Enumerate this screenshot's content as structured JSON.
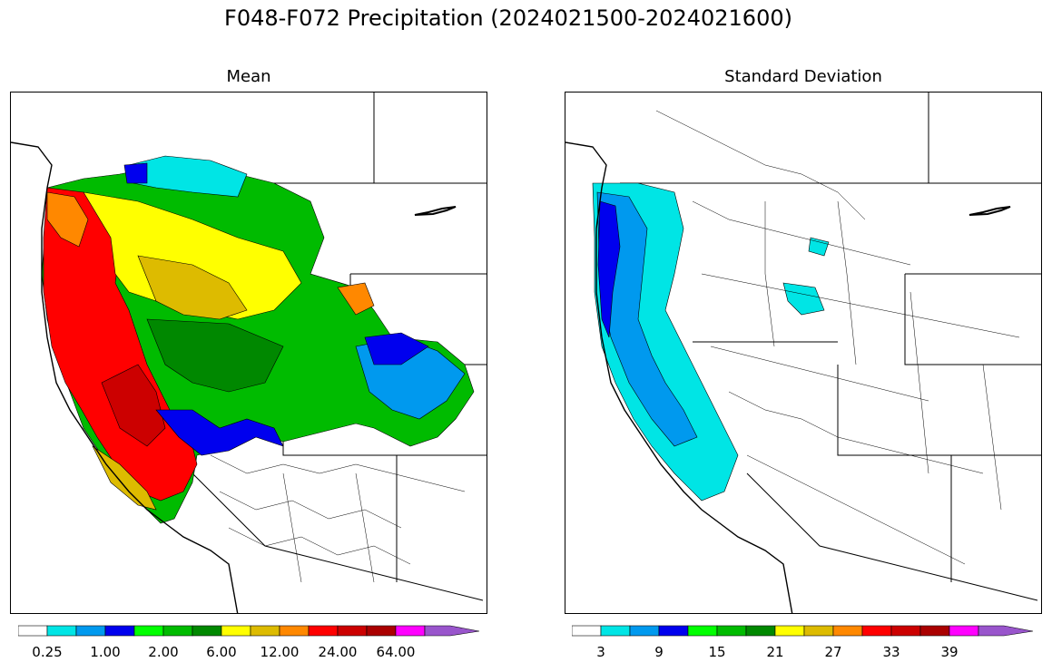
{
  "figure": {
    "title": "F048-F072 Precipitation (2024021500-2024021600)"
  },
  "panels": [
    {
      "title": "Mean",
      "colorbar": {
        "colors": [
          "#ffffff",
          "#00e5e5",
          "#0099ee",
          "#0000ee",
          "#00ff00",
          "#00bb00",
          "#008800",
          "#ffff00",
          "#ddbb00",
          "#ff8800",
          "#ff0000",
          "#cc0000",
          "#aa0000",
          "#ff00ff",
          "#9955cc"
        ],
        "tick_labels": [
          "0.25",
          "1.00",
          "2.00",
          "6.00",
          "12.00",
          "24.00",
          "64.00"
        ],
        "extend": "max"
      }
    },
    {
      "title": "Standard Deviation",
      "colorbar": {
        "colors": [
          "#ffffff",
          "#00e5e5",
          "#0099ee",
          "#0000ee",
          "#00ff00",
          "#00bb00",
          "#008800",
          "#ffff00",
          "#ddbb00",
          "#ff8800",
          "#ff0000",
          "#cc0000",
          "#aa0000",
          "#ff00ff",
          "#9955cc"
        ],
        "tick_labels": [
          "3",
          "9",
          "15",
          "21",
          "27",
          "33",
          "39"
        ],
        "extend": "max"
      }
    }
  ]
}
